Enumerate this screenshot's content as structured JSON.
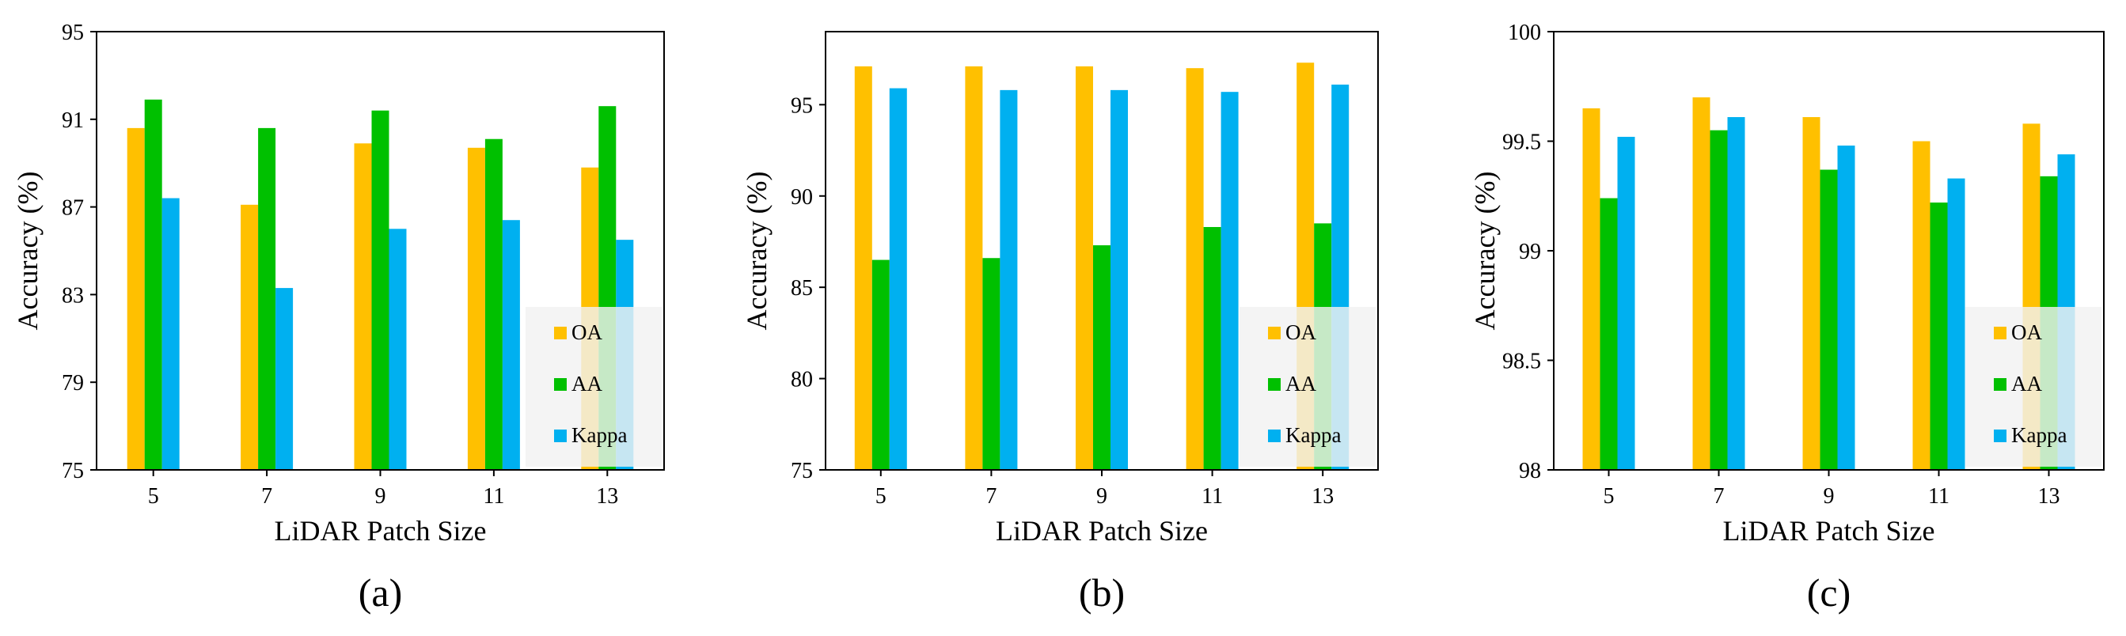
{
  "colors": {
    "OA": "#FFC000",
    "AA": "#00C000",
    "Kappa": "#00B0F0",
    "axis": "#000000",
    "legend_bg": "#F2F2F2"
  },
  "chart_data": [
    {
      "type": "bar",
      "caption": "(a)",
      "xlabel": "LiDAR Patch Size",
      "ylabel": "Accuracy (%)",
      "categories": [
        "5",
        "7",
        "9",
        "11",
        "13"
      ],
      "ylim": [
        75,
        95
      ],
      "yticks": [
        "75",
        "79",
        "83",
        "87",
        "91",
        "95"
      ],
      "legend_position": "bottom-right",
      "series": [
        {
          "name": "OA",
          "values": [
            90.6,
            87.1,
            89.9,
            89.7,
            88.8
          ]
        },
        {
          "name": "AA",
          "values": [
            91.9,
            90.6,
            91.4,
            90.1,
            91.6
          ]
        },
        {
          "name": "Kappa",
          "values": [
            87.4,
            83.3,
            86.0,
            86.4,
            85.5
          ]
        }
      ]
    },
    {
      "type": "bar",
      "caption": "(b)",
      "xlabel": "LiDAR Patch Size",
      "ylabel": "Accuracy (%)",
      "categories": [
        "5",
        "7",
        "9",
        "11",
        "13"
      ],
      "ylim": [
        75,
        99
      ],
      "yticks": [
        "75",
        "80",
        "85",
        "90",
        "95"
      ],
      "legend_position": "bottom-right",
      "series": [
        {
          "name": "OA",
          "values": [
            97.1,
            97.1,
            97.1,
            97.0,
            97.3
          ]
        },
        {
          "name": "AA",
          "values": [
            86.5,
            86.6,
            87.3,
            88.3,
            88.5
          ]
        },
        {
          "name": "Kappa",
          "values": [
            95.9,
            95.8,
            95.8,
            95.7,
            96.1
          ]
        }
      ]
    },
    {
      "type": "bar",
      "caption": "(c)",
      "xlabel": "LiDAR Patch Size",
      "ylabel": "Accuracy (%)",
      "categories": [
        "5",
        "7",
        "9",
        "11",
        "13"
      ],
      "ylim": [
        98,
        100
      ],
      "yticks": [
        "98",
        "98.5",
        "99",
        "99.5",
        "100"
      ],
      "legend_position": "bottom-right",
      "series": [
        {
          "name": "OA",
          "values": [
            99.65,
            99.7,
            99.61,
            99.5,
            99.58
          ]
        },
        {
          "name": "AA",
          "values": [
            99.24,
            99.55,
            99.37,
            99.22,
            99.34
          ]
        },
        {
          "name": "Kappa",
          "values": [
            99.52,
            99.61,
            99.48,
            99.33,
            99.44
          ]
        }
      ]
    }
  ]
}
